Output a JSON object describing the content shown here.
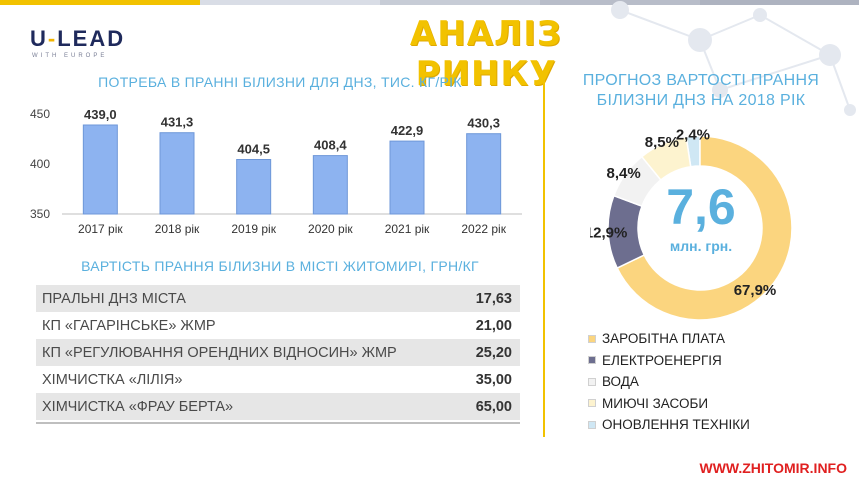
{
  "header": {
    "logo_main_left": "U",
    "logo_dash": "-",
    "logo_main_right": "LEAD",
    "logo_sub": "WITH EUROPE",
    "title": "АНАЛІЗ РИНКУ"
  },
  "colors": {
    "accent_yellow": "#f2c200",
    "accent_blue": "#5ab0de",
    "bar_fill": "#8db3f0",
    "bar_stroke": "#6e97d8",
    "table_odd": "#e6e6e6",
    "topbar": [
      "#f2c200",
      "#d9dde6",
      "#c7ccd6",
      "#b8bdc9",
      "#aeb3c0"
    ]
  },
  "sections": {
    "bar_title": "ПОТРЕБА В ПРАННІ БІЛИЗНИ ДЛЯ ДНЗ, ТИС. КГ/РІК",
    "table_title": "ВАРТІСТЬ ПРАННЯ БІЛИЗНИ В МІСТІ ЖИТОМИРІ, ГРН/КГ",
    "donut_title_line1": "ПРОГНОЗ ВАРТОСТІ ПРАННЯ",
    "donut_title_line2": "БІЛИЗНИ ДНЗ НА 2018 РІК"
  },
  "price_table": [
    {
      "name": "ПРАЛЬНІ ДНЗ МІСТА",
      "value": "17,63"
    },
    {
      "name": "КП «ГАГАРІНСЬКЕ» ЖМР",
      "value": "21,00"
    },
    {
      "name": "КП «РЕГУЛЮВАННЯ ОРЕНДНИХ ВІДНОСИН» ЖМР",
      "value": "25,20"
    },
    {
      "name": "ХІМЧИСТКА «ЛІЛІЯ»",
      "value": "35,00"
    },
    {
      "name": "ХІМЧИСТКА «ФРАУ БЕРТА»",
      "value": "65,00"
    }
  ],
  "donut_center": {
    "value": "7,6",
    "unit": "млн. грн."
  },
  "credit": "WWW.ZHITOMIR.INFO",
  "chart_data": [
    {
      "type": "bar",
      "title": "ПОТРЕБА В ПРАННІ БІЛИЗНИ ДЛЯ ДНЗ, ТИС. КГ/РІК",
      "categories": [
        "2017 рік",
        "2018 рік",
        "2019 рік",
        "2020 рік",
        "2021 рік",
        "2022 рік"
      ],
      "values": [
        439.0,
        431.3,
        404.5,
        408.4,
        422.9,
        430.3
      ],
      "data_labels": [
        "439,0",
        "431,3",
        "404,5",
        "408,4",
        "422,9",
        "430,3"
      ],
      "ylim": [
        350,
        450
      ],
      "yticks": [
        350,
        400,
        450
      ],
      "grid": false,
      "legend": "none"
    },
    {
      "type": "pie",
      "title": "ПРОГНОЗ ВАРТОСТІ ПРАННЯ БІЛИЗНИ ДНЗ НА 2018 РІК",
      "donut": true,
      "start_label": "ОНОВЛЕННЯ ТЕХНІКИ",
      "legend": "bottom",
      "slices": [
        {
          "label": "ЗАРОБІТНА ПЛАТА",
          "value": 67.9,
          "text": "67,9%",
          "color": "#fbd57f"
        },
        {
          "label": "ЕЛЕКТРОЕНЕРГІЯ",
          "value": 12.9,
          "text": "12,9%",
          "color": "#6d6e8f"
        },
        {
          "label": "ВОДА",
          "value": 8.4,
          "text": "8,4%",
          "color": "#f2f2f2"
        },
        {
          "label": "МИЮЧІ ЗАСОБИ",
          "value": 8.5,
          "text": "8,5%",
          "color": "#fdf3cf"
        },
        {
          "label": "ОНОВЛЕННЯ ТЕХНІКИ",
          "value": 2.4,
          "text": "2,4%",
          "color": "#cfe7f4"
        }
      ]
    }
  ]
}
